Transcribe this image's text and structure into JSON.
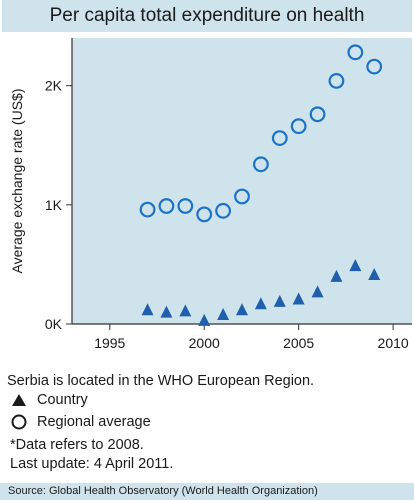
{
  "header": {
    "title": "Per capita total expenditure on health"
  },
  "chart_data": {
    "type": "scatter",
    "title": "Per capita total expenditure on health",
    "ylabel": "Average exchange rate (US$)",
    "xlabel": "",
    "xlim": [
      1993,
      2011
    ],
    "ylim": [
      0,
      2400
    ],
    "xticks": [
      1995,
      2000,
      2005,
      2010
    ],
    "xtick_labels": [
      "1995",
      "2000",
      "2005",
      "2010"
    ],
    "yticks": [
      0,
      1000,
      2000
    ],
    "ytick_labels": [
      "0K",
      "1K",
      "2K"
    ],
    "grid": false,
    "series": [
      {
        "name": "Country",
        "marker": "triangle",
        "color": "#1f5fae",
        "x": [
          1997,
          1998,
          1999,
          2000,
          2001,
          2002,
          2003,
          2004,
          2005,
          2006,
          2007,
          2008,
          2009
        ],
        "y": [
          120,
          100,
          110,
          30,
          80,
          120,
          170,
          190,
          210,
          270,
          400,
          490,
          415
        ]
      },
      {
        "name": "Regional average",
        "marker": "circle",
        "color": "#1a73c8",
        "x": [
          1997,
          1998,
          1999,
          2000,
          2001,
          2002,
          2003,
          2004,
          2005,
          2006,
          2007,
          2008,
          2009
        ],
        "y": [
          960,
          990,
          990,
          920,
          950,
          1070,
          1340,
          1560,
          1660,
          1760,
          2040,
          2280,
          2160
        ]
      }
    ]
  },
  "caption": "Serbia is located in the WHO European Region.",
  "legend": {
    "country": "Country",
    "regional": "Regional average"
  },
  "notes": {
    "line1": "*Data refers to 2008.",
    "line2": "Last update: 4 April 2011."
  },
  "source": "Source: Global Health Observatory (World Health Organization)",
  "colors": {
    "header_bg": "#cfe3ec",
    "plot_bg": "#cfe3ec",
    "marker": "#1a73c8"
  }
}
